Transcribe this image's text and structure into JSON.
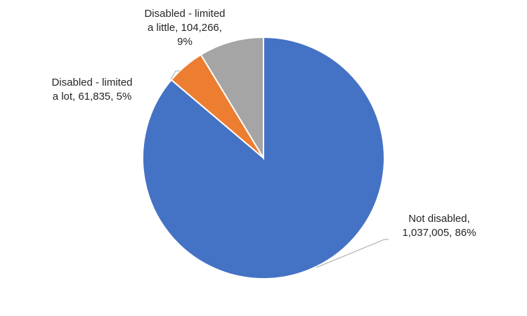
{
  "chart_data": {
    "type": "pie",
    "title": "",
    "legend": "none",
    "slices": [
      {
        "label_lines": [
          "Not disabled,",
          "1,037,005, 86%"
        ],
        "value": 1037005,
        "percent": 86,
        "color": "#4472c4"
      },
      {
        "label_lines": [
          "Disabled - limited",
          "a lot, 61,835, 5%"
        ],
        "value": 61835,
        "percent": 5,
        "color": "#ed7d31"
      },
      {
        "label_lines": [
          "Disabled - limited",
          "a little, 104,266,",
          "9%"
        ],
        "value": 104266,
        "percent": 9,
        "color": "#a5a5a5"
      }
    ]
  }
}
